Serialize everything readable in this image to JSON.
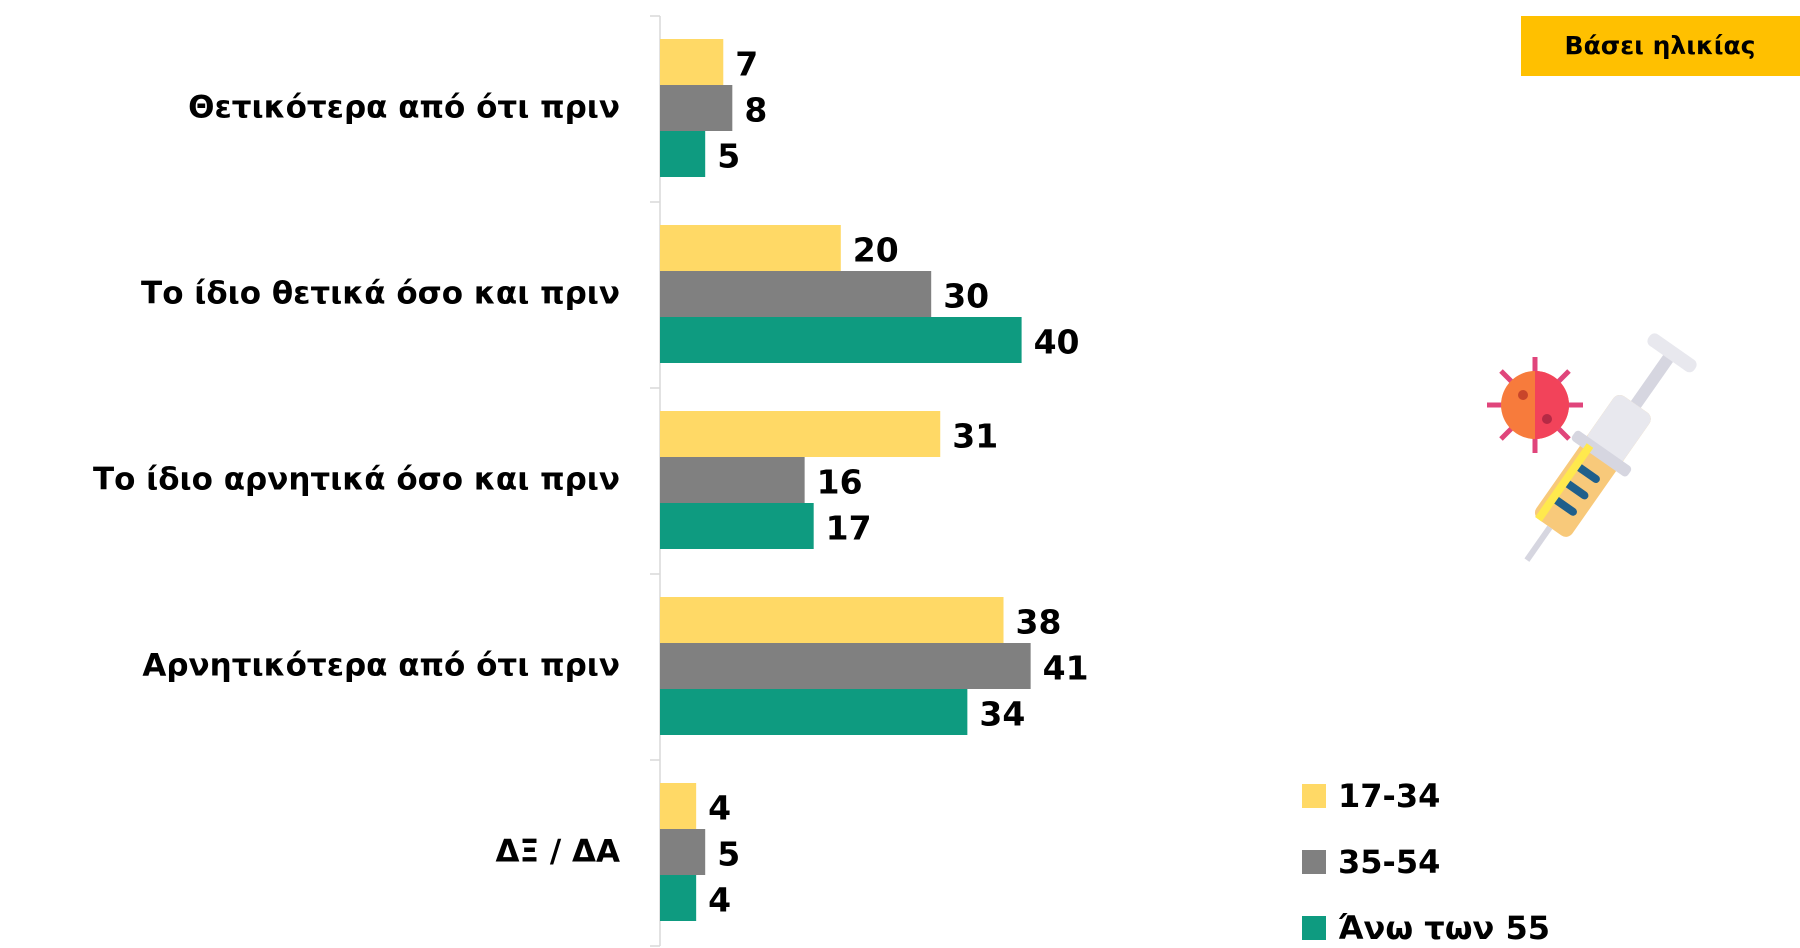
{
  "chart_data": {
    "type": "hbar",
    "badge": "Βάσει ηλικίας",
    "categories": [
      "Θετικότερα από ότι πριν",
      "Το ίδιο θετικά όσο και πριν",
      "Το ίδιο αρνητικά όσο και πριν",
      "Αρνητικότερα από ότι πριν",
      "ΔΞ / ΔΑ"
    ],
    "series": [
      {
        "name": "17-34",
        "color": "#ffd966",
        "values": [
          7,
          20,
          31,
          38,
          4
        ]
      },
      {
        "name": "35-54",
        "color": "#808080",
        "values": [
          8,
          30,
          16,
          41,
          5
        ]
      },
      {
        "name": "Άνω των 55",
        "color": "#0e9b80",
        "values": [
          5,
          40,
          17,
          34,
          4
        ]
      }
    ]
  }
}
